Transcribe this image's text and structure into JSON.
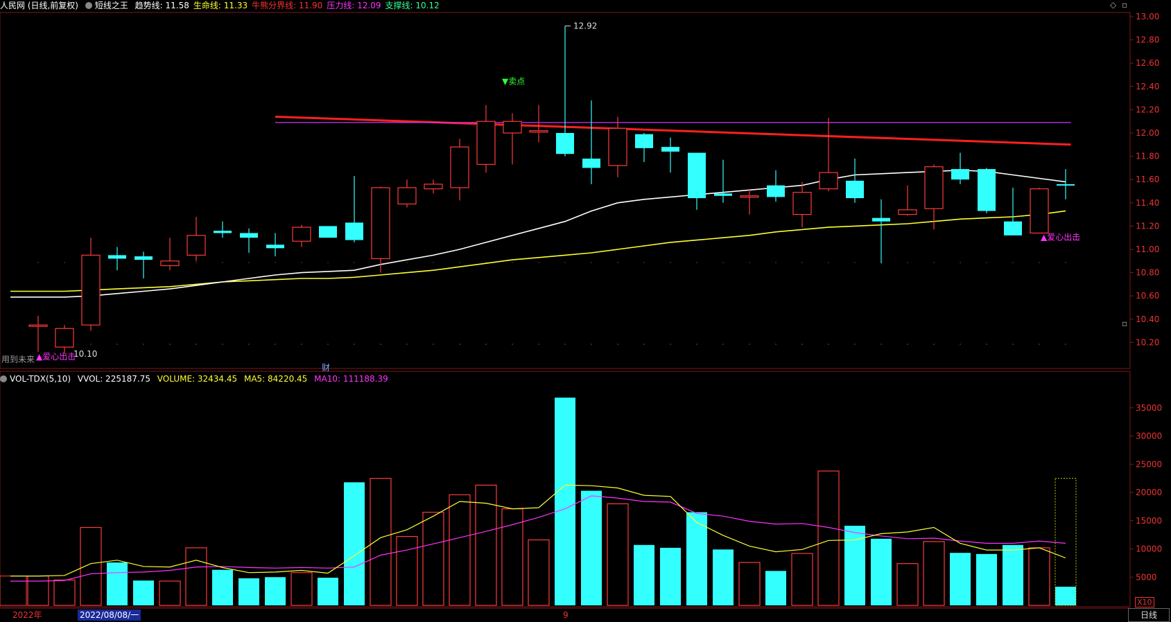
{
  "header": {
    "stock": "人民网 (日线,前复权)",
    "indicator": "短线之王",
    "items": [
      {
        "label": "趋势线: 11.58",
        "color": "#ffffff"
      },
      {
        "label": "生命线: 11.33",
        "color": "#ffff33"
      },
      {
        "label": "牛熊分界线: 11.90",
        "color": "#ff3030"
      },
      {
        "label": "压力线: 12.09",
        "color": "#ff33ff"
      },
      {
        "label": "支撑线: 10.12",
        "color": "#33ff99"
      }
    ]
  },
  "vol_header": {
    "name": "VOL-TDX(5,10)",
    "vvol": "VVOL: 225187.75",
    "volume": "VOLUME: 32434.45",
    "ma5": "MA5: 84220.45",
    "ma10": "MA10: 111188.39",
    "colors": {
      "vvol": "#ffffff",
      "volume": "#ffff33",
      "ma5": "#ffff33",
      "ma10": "#ff33ff"
    }
  },
  "annotations": {
    "high": "12.92",
    "low": "10.10",
    "sell": "▼卖点",
    "buy_right": "▲爱心出击",
    "buy_left": "▲爱心出击",
    "cai": "财",
    "side_note": "用到未来"
  },
  "axis": {
    "year": "2022年",
    "date_box": "2022/08/08/一",
    "month": "9",
    "daily_tag": "日线",
    "x10": "X10"
  },
  "colors": {
    "up": "#ff3b3b",
    "down": "#33ffff",
    "grid": "#7a1a1a",
    "ma_white": "#ffffff",
    "ma_yellow": "#ffff33",
    "pressure": "#cc33ff",
    "bullbear": "#ff2020"
  },
  "chart_data": {
    "type": "candlestick",
    "price_axis": {
      "ticks": [
        10.2,
        10.4,
        10.6,
        10.8,
        11.0,
        11.2,
        11.4,
        11.6,
        11.8,
        12.0,
        12.2,
        12.4,
        12.6,
        12.8,
        13.0
      ]
    },
    "volume_axis": {
      "ticks": [
        5000,
        10000,
        15000,
        20000,
        25000,
        30000,
        35000
      ]
    },
    "candles": [
      {
        "o": 10.35,
        "h": 10.43,
        "l": 10.12,
        "c": 10.35,
        "v": 5200
      },
      {
        "o": 10.16,
        "h": 10.35,
        "l": 10.1,
        "c": 10.32,
        "v": 4500
      },
      {
        "o": 10.35,
        "h": 11.1,
        "l": 10.3,
        "c": 10.95,
        "v": 13800
      },
      {
        "o": 10.95,
        "h": 11.02,
        "l": 10.82,
        "c": 10.92,
        "v": 7600
      },
      {
        "o": 10.94,
        "h": 10.98,
        "l": 10.75,
        "c": 10.91,
        "v": 4400
      },
      {
        "o": 10.86,
        "h": 11.1,
        "l": 10.82,
        "c": 10.9,
        "v": 4300
      },
      {
        "o": 10.95,
        "h": 11.28,
        "l": 10.9,
        "c": 11.12,
        "v": 10200
      },
      {
        "o": 11.16,
        "h": 11.24,
        "l": 11.1,
        "c": 11.14,
        "v": 6300
      },
      {
        "o": 11.14,
        "h": 11.18,
        "l": 10.97,
        "c": 11.1,
        "v": 4800
      },
      {
        "o": 11.04,
        "h": 11.14,
        "l": 10.94,
        "c": 11.01,
        "v": 5000
      },
      {
        "o": 11.07,
        "h": 11.21,
        "l": 11.02,
        "c": 11.19,
        "v": 5800
      },
      {
        "o": 11.2,
        "h": 11.2,
        "l": 11.1,
        "c": 11.1,
        "v": 4900
      },
      {
        "o": 11.23,
        "h": 11.63,
        "l": 11.06,
        "c": 11.08,
        "v": 21800
      },
      {
        "o": 10.92,
        "h": 11.54,
        "l": 10.8,
        "c": 11.53,
        "v": 22500
      },
      {
        "o": 11.39,
        "h": 11.6,
        "l": 11.36,
        "c": 11.53,
        "v": 12200
      },
      {
        "o": 11.52,
        "h": 11.6,
        "l": 11.48,
        "c": 11.56,
        "v": 16500
      },
      {
        "o": 11.53,
        "h": 11.95,
        "l": 11.42,
        "c": 11.88,
        "v": 19600
      },
      {
        "o": 11.73,
        "h": 12.24,
        "l": 11.66,
        "c": 12.1,
        "v": 21300
      },
      {
        "o": 12.0,
        "h": 12.17,
        "l": 11.73,
        "c": 12.1,
        "v": 17100
      },
      {
        "o": 12.02,
        "h": 12.24,
        "l": 11.92,
        "c": 12.02,
        "v": 11600
      },
      {
        "o": 12.0,
        "h": 12.92,
        "l": 11.8,
        "c": 11.82,
        "v": 36800
      },
      {
        "o": 11.78,
        "h": 12.28,
        "l": 11.56,
        "c": 11.7,
        "v": 20300
      },
      {
        "o": 11.72,
        "h": 12.14,
        "l": 11.62,
        "c": 12.04,
        "v": 18000
      },
      {
        "o": 11.99,
        "h": 12.0,
        "l": 11.75,
        "c": 11.87,
        "v": 10700
      },
      {
        "o": 11.88,
        "h": 11.96,
        "l": 11.66,
        "c": 11.84,
        "v": 10200
      },
      {
        "o": 11.83,
        "h": 11.83,
        "l": 11.34,
        "c": 11.44,
        "v": 16500
      },
      {
        "o": 11.48,
        "h": 11.77,
        "l": 11.4,
        "c": 11.46,
        "v": 9900
      },
      {
        "o": 11.45,
        "h": 11.52,
        "l": 11.3,
        "c": 11.46,
        "v": 7600
      },
      {
        "o": 11.55,
        "h": 11.68,
        "l": 11.41,
        "c": 11.45,
        "v": 6100
      },
      {
        "o": 11.3,
        "h": 11.58,
        "l": 11.19,
        "c": 11.49,
        "v": 9200
      },
      {
        "o": 11.52,
        "h": 12.13,
        "l": 11.5,
        "c": 11.66,
        "v": 23800
      },
      {
        "o": 11.59,
        "h": 11.78,
        "l": 11.4,
        "c": 11.44,
        "v": 14100
      },
      {
        "o": 11.27,
        "h": 11.43,
        "l": 10.88,
        "c": 11.24,
        "v": 11800
      },
      {
        "o": 11.3,
        "h": 11.55,
        "l": 11.29,
        "c": 11.34,
        "v": 7400
      },
      {
        "o": 11.35,
        "h": 11.73,
        "l": 11.17,
        "c": 11.71,
        "v": 11300
      },
      {
        "o": 11.69,
        "h": 11.83,
        "l": 11.56,
        "c": 11.6,
        "v": 9300
      },
      {
        "o": 11.69,
        "h": 11.7,
        "l": 11.31,
        "c": 11.33,
        "v": 9100
      },
      {
        "o": 11.24,
        "h": 11.53,
        "l": 11.12,
        "c": 11.12,
        "v": 10700
      },
      {
        "o": 11.14,
        "h": 11.53,
        "l": 11.14,
        "c": 11.52,
        "v": 10200
      },
      {
        "o": 11.56,
        "h": 11.69,
        "l": 11.43,
        "c": 11.55,
        "v": 3300
      }
    ],
    "ma_white": [
      10.59,
      10.59,
      10.6,
      10.62,
      10.64,
      10.66,
      10.69,
      10.72,
      10.75,
      10.78,
      10.8,
      10.81,
      10.82,
      10.87,
      10.91,
      10.95,
      11.0,
      11.06,
      11.12,
      11.18,
      11.24,
      11.33,
      11.4,
      11.43,
      11.45,
      11.47,
      11.49,
      11.51,
      11.53,
      11.55,
      11.6,
      11.64,
      11.65,
      11.66,
      11.67,
      11.68,
      11.67,
      11.64,
      11.61,
      11.58
    ],
    "ma_yellow": [
      10.64,
      10.64,
      10.65,
      10.66,
      10.67,
      10.68,
      10.7,
      10.72,
      10.73,
      10.74,
      10.75,
      10.75,
      10.76,
      10.78,
      10.8,
      10.82,
      10.85,
      10.88,
      10.91,
      10.93,
      10.95,
      10.97,
      11.0,
      11.03,
      11.06,
      11.08,
      11.1,
      11.12,
      11.15,
      11.17,
      11.19,
      11.2,
      11.21,
      11.22,
      11.24,
      11.26,
      11.27,
      11.28,
      11.3,
      11.33
    ],
    "vol_ma5": [
      5200,
      5300,
      7400,
      8000,
      6900,
      6800,
      8000,
      6700,
      5800,
      5900,
      6200,
      5700,
      8800,
      12000,
      13400,
      15800,
      18400,
      18100,
      17100,
      17300,
      21300,
      21200,
      20800,
      19500,
      19300,
      14700,
      12400,
      10500,
      9500,
      9900,
      11500,
      11600,
      12700,
      13000,
      13800,
      11000,
      9800,
      9800,
      10200,
      8400
    ],
    "vol_ma10": [
      4300,
      4400,
      5600,
      5800,
      5900,
      6200,
      6800,
      6900,
      6700,
      6600,
      6700,
      6600,
      6800,
      8900,
      9800,
      10900,
      12000,
      13100,
      14300,
      15600,
      17100,
      19400,
      19000,
      18400,
      18300,
      16300,
      15800,
      14900,
      14400,
      14500,
      13800,
      12900,
      12300,
      11800,
      11900,
      11400,
      11000,
      11000,
      11400,
      11000
    ],
    "bullbear_line": {
      "from": 12.14,
      "to": 11.9
    },
    "pressure_line": 12.09
  }
}
